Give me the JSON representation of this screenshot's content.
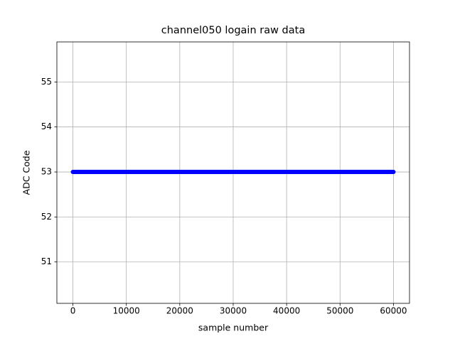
{
  "chart_data": {
    "type": "line",
    "title": "channel050 logain raw data",
    "x_label": "sample number",
    "y_label": "ADC Code",
    "x": [
      0,
      60000
    ],
    "series": [
      {
        "name": "channel050",
        "color": "#0000ff",
        "values": [
          53,
          53
        ]
      }
    ],
    "xlim": [
      -3000,
      63000
    ],
    "ylim": [
      50.08,
      55.89
    ],
    "xticks": [
      0,
      10000,
      20000,
      30000,
      40000,
      50000,
      60000
    ],
    "yticks": [
      51,
      52,
      53,
      54,
      55
    ],
    "grid": true
  }
}
